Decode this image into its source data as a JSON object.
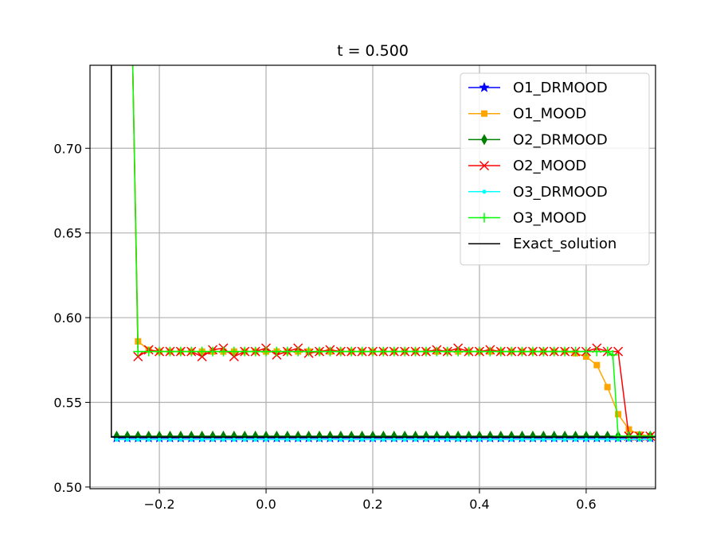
{
  "chart_data": {
    "type": "line",
    "title": "t = 0.500",
    "xlabel": "",
    "ylabel": "",
    "xlim": [
      -0.33,
      0.73
    ],
    "ylim": [
      0.499,
      0.749
    ],
    "x_ticks": [
      -0.2,
      0.0,
      0.2,
      0.4,
      0.6
    ],
    "x_tick_labels": [
      "−0.2",
      "0.0",
      "0.2",
      "0.4",
      "0.6"
    ],
    "y_ticks": [
      0.5,
      0.55,
      0.6,
      0.65,
      0.7
    ],
    "y_tick_labels": [
      "0.50",
      "0.55",
      "0.60",
      "0.65",
      "0.70"
    ],
    "grid": true,
    "legend_position": "top-right",
    "series": [
      {
        "name": "O1_DRMOOD",
        "color": "#0000ff",
        "marker": "star",
        "x": [
          -0.28,
          -0.26,
          -0.24,
          -0.22,
          -0.2,
          -0.18,
          -0.16,
          -0.14,
          -0.12,
          -0.1,
          -0.08,
          -0.06,
          -0.04,
          -0.02,
          0.0,
          0.02,
          0.04,
          0.06,
          0.08,
          0.1,
          0.12,
          0.14,
          0.16,
          0.18,
          0.2,
          0.22,
          0.24,
          0.26,
          0.28,
          0.3,
          0.32,
          0.34,
          0.36,
          0.38,
          0.4,
          0.42,
          0.44,
          0.46,
          0.48,
          0.5,
          0.52,
          0.54,
          0.56,
          0.58,
          0.6,
          0.62,
          0.64,
          0.66,
          0.68,
          0.7,
          0.72
        ],
        "y": [
          0.529,
          0.529,
          0.529,
          0.529,
          0.529,
          0.529,
          0.529,
          0.529,
          0.529,
          0.529,
          0.529,
          0.529,
          0.529,
          0.529,
          0.529,
          0.529,
          0.529,
          0.529,
          0.529,
          0.529,
          0.529,
          0.529,
          0.529,
          0.529,
          0.529,
          0.529,
          0.529,
          0.529,
          0.529,
          0.529,
          0.529,
          0.529,
          0.529,
          0.529,
          0.529,
          0.529,
          0.529,
          0.529,
          0.529,
          0.529,
          0.529,
          0.529,
          0.529,
          0.529,
          0.529,
          0.529,
          0.529,
          0.529,
          0.529,
          0.529,
          0.529
        ]
      },
      {
        "name": "O1_MOOD",
        "color": "#ffa500",
        "marker": "square",
        "x": [
          -0.25,
          -0.24,
          -0.22,
          -0.2,
          -0.18,
          -0.16,
          -0.14,
          -0.12,
          -0.1,
          -0.08,
          -0.06,
          -0.04,
          -0.02,
          0.0,
          0.02,
          0.04,
          0.06,
          0.08,
          0.1,
          0.12,
          0.14,
          0.16,
          0.18,
          0.2,
          0.22,
          0.24,
          0.26,
          0.28,
          0.3,
          0.32,
          0.34,
          0.36,
          0.38,
          0.4,
          0.42,
          0.44,
          0.46,
          0.48,
          0.5,
          0.52,
          0.54,
          0.56,
          0.58,
          0.6,
          0.62,
          0.64,
          0.66,
          0.68,
          0.7,
          0.72
        ],
        "y": [
          0.75,
          0.586,
          0.581,
          0.58,
          0.58,
          0.58,
          0.58,
          0.58,
          0.58,
          0.58,
          0.58,
          0.58,
          0.58,
          0.58,
          0.58,
          0.58,
          0.58,
          0.58,
          0.58,
          0.58,
          0.58,
          0.58,
          0.58,
          0.58,
          0.58,
          0.58,
          0.58,
          0.58,
          0.58,
          0.58,
          0.58,
          0.58,
          0.58,
          0.58,
          0.58,
          0.58,
          0.58,
          0.58,
          0.58,
          0.58,
          0.58,
          0.58,
          0.579,
          0.577,
          0.572,
          0.559,
          0.543,
          0.534,
          0.531,
          0.53
        ]
      },
      {
        "name": "O2_DRMOOD",
        "color": "#008000",
        "marker": "diamond",
        "x": [
          -0.28,
          -0.26,
          -0.24,
          -0.22,
          -0.2,
          -0.18,
          -0.16,
          -0.14,
          -0.12,
          -0.1,
          -0.08,
          -0.06,
          -0.04,
          -0.02,
          0.0,
          0.02,
          0.04,
          0.06,
          0.08,
          0.1,
          0.12,
          0.14,
          0.16,
          0.18,
          0.2,
          0.22,
          0.24,
          0.26,
          0.28,
          0.3,
          0.32,
          0.34,
          0.36,
          0.38,
          0.4,
          0.42,
          0.44,
          0.46,
          0.48,
          0.5,
          0.52,
          0.54,
          0.56,
          0.58,
          0.6,
          0.62,
          0.64,
          0.66,
          0.68,
          0.7,
          0.72
        ],
        "y": [
          0.53,
          0.53,
          0.53,
          0.53,
          0.53,
          0.53,
          0.53,
          0.53,
          0.53,
          0.53,
          0.53,
          0.53,
          0.53,
          0.53,
          0.53,
          0.53,
          0.53,
          0.53,
          0.53,
          0.53,
          0.53,
          0.53,
          0.53,
          0.53,
          0.53,
          0.53,
          0.53,
          0.53,
          0.53,
          0.53,
          0.53,
          0.53,
          0.53,
          0.53,
          0.53,
          0.53,
          0.53,
          0.53,
          0.53,
          0.53,
          0.53,
          0.53,
          0.53,
          0.53,
          0.53,
          0.53,
          0.53,
          0.53,
          0.53,
          0.53,
          0.53
        ]
      },
      {
        "name": "O2_MOOD",
        "color": "#ff0000",
        "marker": "x",
        "x": [
          -0.25,
          -0.24,
          -0.22,
          -0.2,
          -0.18,
          -0.16,
          -0.14,
          -0.12,
          -0.1,
          -0.08,
          -0.06,
          -0.04,
          -0.02,
          0.0,
          0.02,
          0.04,
          0.06,
          0.08,
          0.1,
          0.12,
          0.14,
          0.16,
          0.18,
          0.2,
          0.22,
          0.24,
          0.26,
          0.28,
          0.3,
          0.32,
          0.34,
          0.36,
          0.38,
          0.4,
          0.42,
          0.44,
          0.46,
          0.48,
          0.5,
          0.52,
          0.54,
          0.56,
          0.58,
          0.6,
          0.62,
          0.64,
          0.66,
          0.68,
          0.7,
          0.72
        ],
        "y": [
          0.75,
          0.577,
          0.581,
          0.58,
          0.58,
          0.58,
          0.58,
          0.577,
          0.581,
          0.582,
          0.577,
          0.58,
          0.58,
          0.582,
          0.578,
          0.58,
          0.582,
          0.579,
          0.58,
          0.581,
          0.58,
          0.58,
          0.58,
          0.58,
          0.58,
          0.58,
          0.58,
          0.58,
          0.58,
          0.581,
          0.58,
          0.582,
          0.58,
          0.58,
          0.581,
          0.58,
          0.58,
          0.58,
          0.58,
          0.58,
          0.58,
          0.58,
          0.58,
          0.58,
          0.582,
          0.58,
          0.58,
          0.53,
          0.53,
          0.53
        ]
      },
      {
        "name": "O3_DRMOOD",
        "color": "#00ffff",
        "marker": "dot",
        "x": [
          -0.28,
          -0.26,
          -0.24,
          -0.22,
          -0.2,
          -0.18,
          -0.16,
          -0.14,
          -0.12,
          -0.1,
          -0.08,
          -0.06,
          -0.04,
          -0.02,
          0.0,
          0.02,
          0.04,
          0.06,
          0.08,
          0.1,
          0.12,
          0.14,
          0.16,
          0.18,
          0.2,
          0.22,
          0.24,
          0.26,
          0.28,
          0.3,
          0.32,
          0.34,
          0.36,
          0.38,
          0.4,
          0.42,
          0.44,
          0.46,
          0.48,
          0.5,
          0.52,
          0.54,
          0.56,
          0.58,
          0.6,
          0.62,
          0.64,
          0.66,
          0.68,
          0.7,
          0.72
        ],
        "y": [
          0.528,
          0.528,
          0.528,
          0.528,
          0.528,
          0.528,
          0.528,
          0.528,
          0.528,
          0.528,
          0.528,
          0.528,
          0.528,
          0.528,
          0.528,
          0.528,
          0.528,
          0.528,
          0.528,
          0.528,
          0.528,
          0.528,
          0.528,
          0.528,
          0.528,
          0.528,
          0.528,
          0.528,
          0.528,
          0.528,
          0.528,
          0.528,
          0.528,
          0.528,
          0.528,
          0.528,
          0.528,
          0.528,
          0.528,
          0.528,
          0.528,
          0.528,
          0.528,
          0.528,
          0.528,
          0.528,
          0.528,
          0.528,
          0.528,
          0.528,
          0.528
        ]
      },
      {
        "name": "O3_MOOD",
        "color": "#00ff00",
        "marker": "plus",
        "x": [
          -0.25,
          -0.24,
          -0.22,
          -0.2,
          -0.18,
          -0.16,
          -0.14,
          -0.12,
          -0.1,
          -0.08,
          -0.06,
          -0.04,
          -0.02,
          0.0,
          0.02,
          0.04,
          0.06,
          0.08,
          0.1,
          0.12,
          0.14,
          0.16,
          0.18,
          0.2,
          0.22,
          0.24,
          0.26,
          0.28,
          0.3,
          0.32,
          0.34,
          0.36,
          0.38,
          0.4,
          0.42,
          0.44,
          0.46,
          0.48,
          0.5,
          0.52,
          0.54,
          0.56,
          0.58,
          0.6,
          0.62,
          0.64,
          0.65,
          0.66,
          0.68,
          0.7,
          0.72
        ],
        "y": [
          0.75,
          0.58,
          0.58,
          0.58,
          0.58,
          0.58,
          0.58,
          0.58,
          0.58,
          0.58,
          0.58,
          0.58,
          0.58,
          0.58,
          0.58,
          0.58,
          0.58,
          0.58,
          0.58,
          0.58,
          0.58,
          0.58,
          0.58,
          0.58,
          0.58,
          0.58,
          0.58,
          0.58,
          0.58,
          0.58,
          0.58,
          0.58,
          0.58,
          0.58,
          0.58,
          0.58,
          0.58,
          0.58,
          0.58,
          0.58,
          0.58,
          0.58,
          0.58,
          0.58,
          0.58,
          0.58,
          0.578,
          0.53,
          0.53,
          0.53,
          0.53
        ]
      },
      {
        "name": "Exact_solution",
        "color": "#000000",
        "marker": "none",
        "x": [
          -0.29,
          -0.29,
          0.73
        ],
        "y": [
          0.75,
          0.5295,
          0.5295
        ]
      }
    ]
  }
}
